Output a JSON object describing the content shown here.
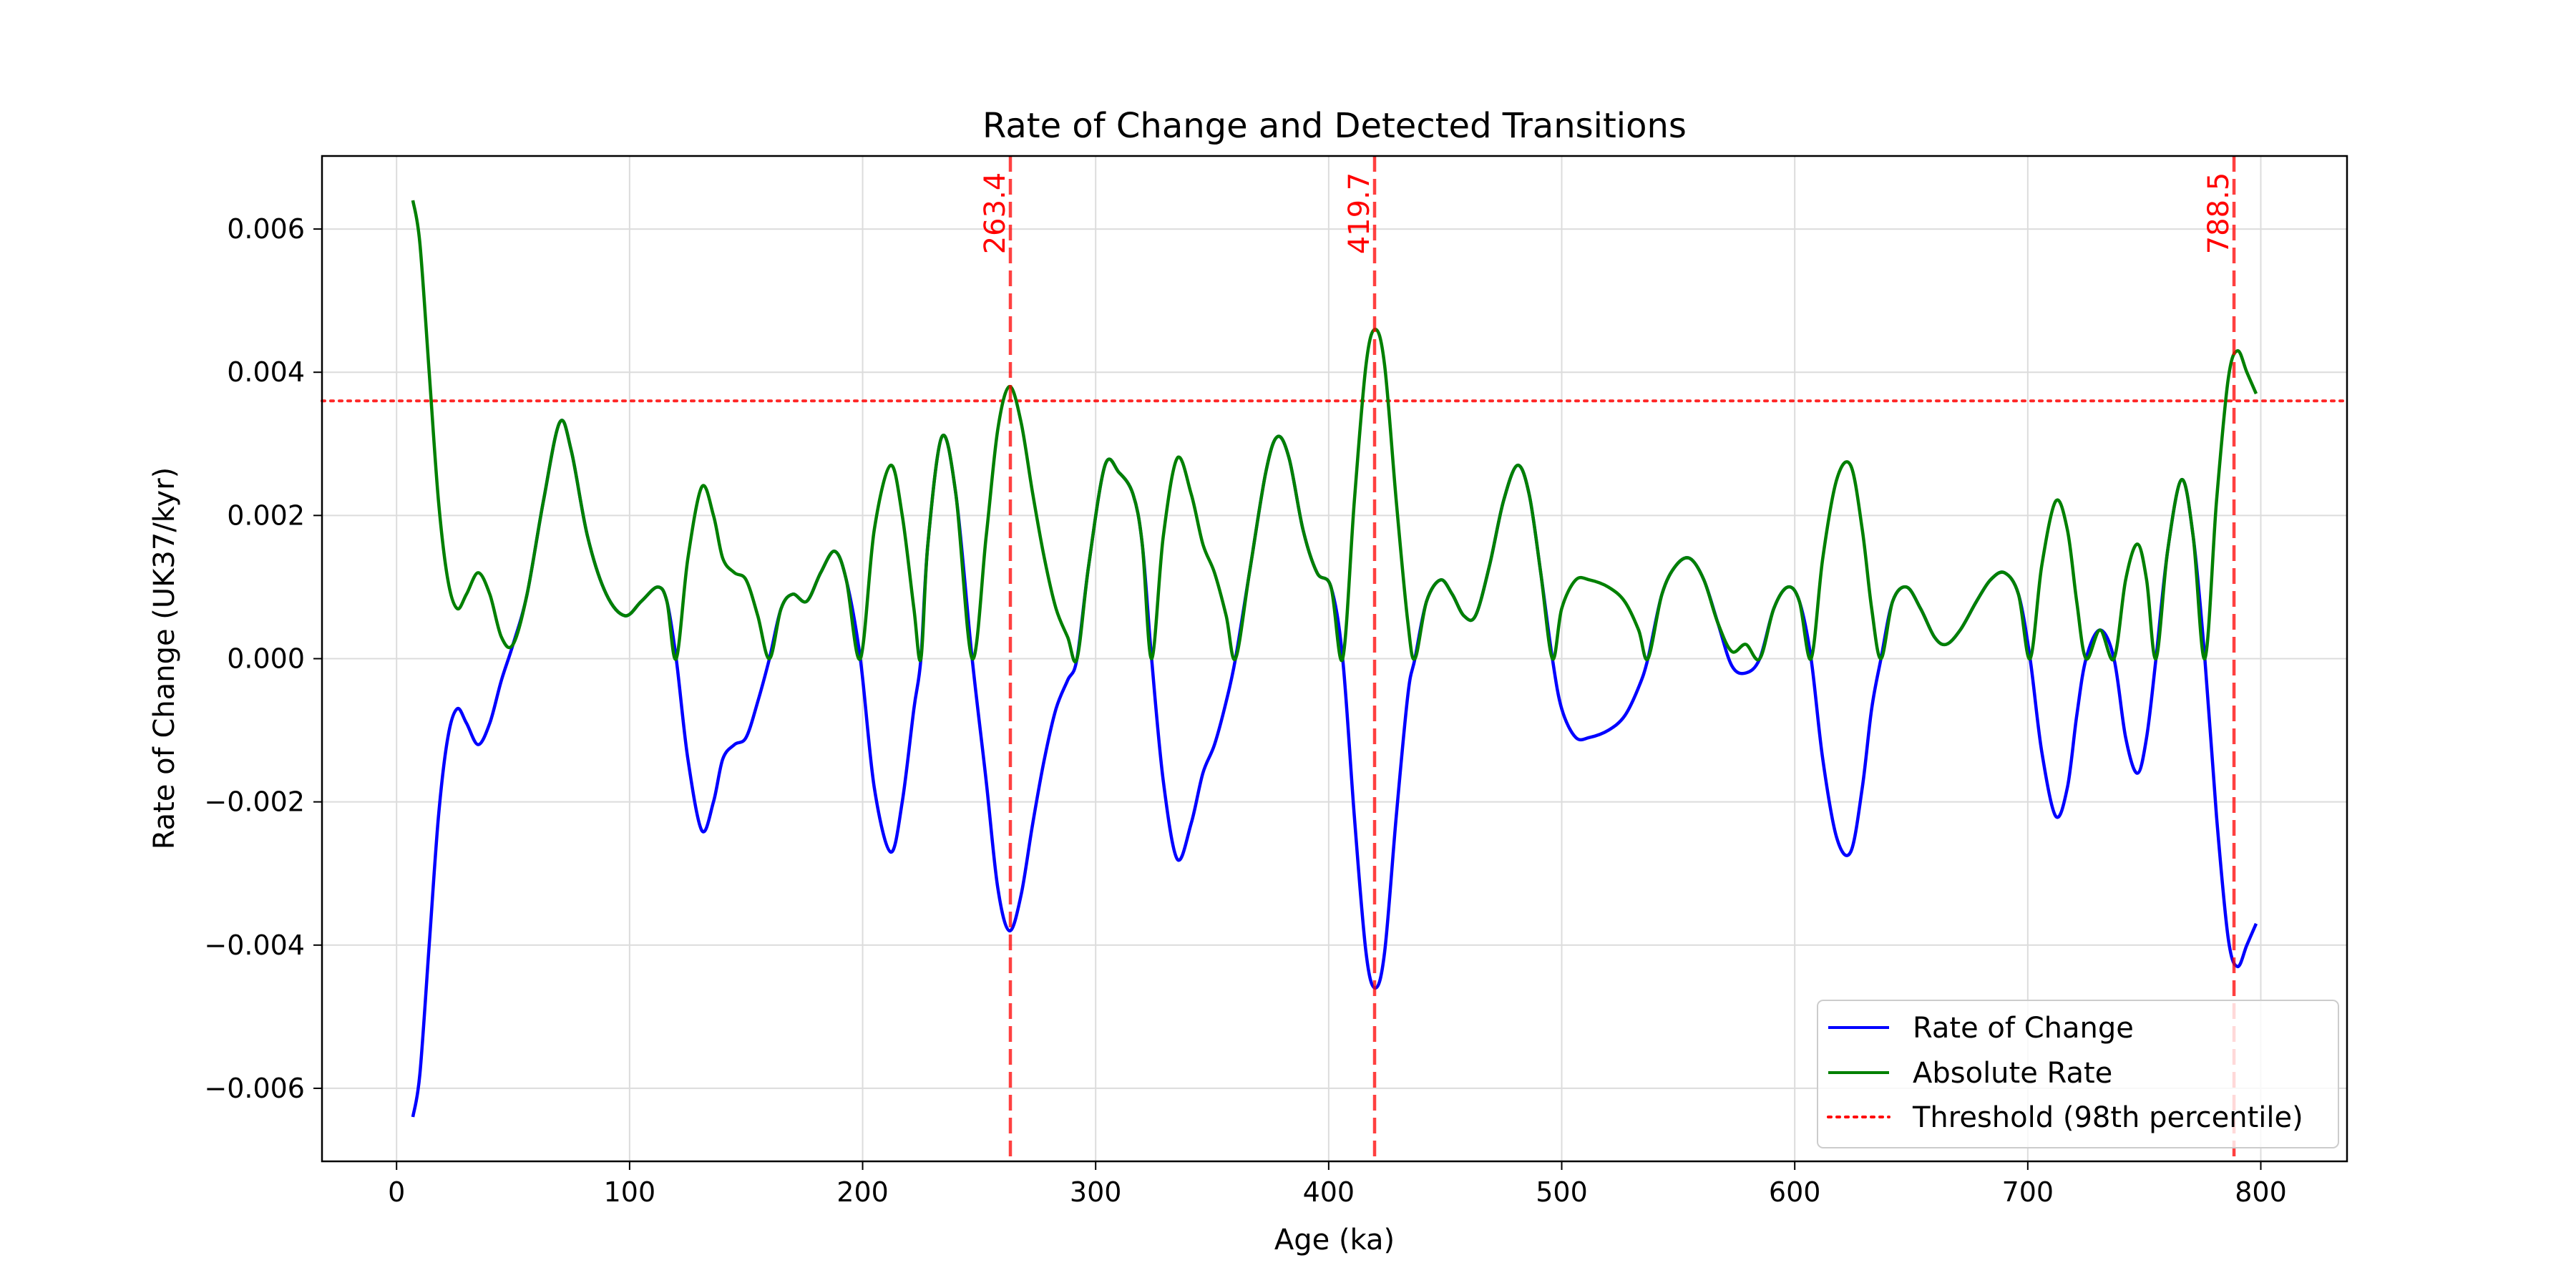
{
  "chart_data": {
    "type": "line",
    "title": "Rate of Change and Detected Transitions",
    "xlabel": "Age (ka)",
    "ylabel": "Rate of Change (UK37/kyr)",
    "xlim": [
      -32,
      837
    ],
    "ylim": [
      -0.00702,
      0.00702
    ],
    "x_ticks": [
      0,
      100,
      200,
      300,
      400,
      500,
      600,
      700,
      800
    ],
    "x_tick_labels": [
      "0",
      "100",
      "200",
      "300",
      "400",
      "500",
      "600",
      "700",
      "800"
    ],
    "y_ticks": [
      -0.006,
      -0.004,
      -0.002,
      0,
      0.002,
      0.004,
      0.006
    ],
    "y_tick_labels": [
      "−0.006",
      "−0.004",
      "−0.002",
      "0.000",
      "0.002",
      "0.004",
      "0.006"
    ],
    "grid": true,
    "legend_position": "lower-right",
    "threshold": {
      "name": "Threshold (98th percentile)",
      "value": 0.0036,
      "color": "#ff0000",
      "style": "dotted"
    },
    "transitions": [
      {
        "x": 263.4,
        "label": "263.4"
      },
      {
        "x": 419.7,
        "label": "419.7"
      },
      {
        "x": 788.5,
        "label": "788.5"
      }
    ],
    "transition_color": "#ff0000",
    "series": [
      {
        "name": "Rate of Change",
        "color": "#0000ff",
        "points": [
          [
            7,
            -0.0064
          ],
          [
            10,
            -0.0058
          ],
          [
            14,
            -0.004
          ],
          [
            18,
            -0.0022
          ],
          [
            22,
            -0.0011
          ],
          [
            26,
            -0.0007
          ],
          [
            30,
            -0.0009
          ],
          [
            35,
            -0.0012
          ],
          [
            40,
            -0.0009
          ],
          [
            45,
            -0.0003
          ],
          [
            50,
            0.0002
          ],
          [
            56,
            0.0009
          ],
          [
            63,
            0.0022
          ],
          [
            70,
            0.0033
          ],
          [
            75,
            0.0029
          ],
          [
            82,
            0.0017
          ],
          [
            90,
            0.0009
          ],
          [
            98,
            0.0006
          ],
          [
            105,
            0.0008
          ],
          [
            112,
            0.001
          ],
          [
            116,
            0.0008
          ],
          [
            120,
            0.0
          ],
          [
            125,
            -0.0014
          ],
          [
            131,
            -0.0024
          ],
          [
            136,
            -0.002
          ],
          [
            140,
            -0.0014
          ],
          [
            145,
            -0.0012
          ],
          [
            150,
            -0.0011
          ],
          [
            155,
            -0.0006
          ],
          [
            160,
            0.0
          ],
          [
            165,
            0.0007
          ],
          [
            170,
            0.0009
          ],
          [
            176,
            0.0008
          ],
          [
            182,
            0.0012
          ],
          [
            188,
            0.0015
          ],
          [
            193,
            0.0011
          ],
          [
            199,
            0.0
          ],
          [
            205,
            -0.0018
          ],
          [
            212,
            -0.0027
          ],
          [
            217,
            -0.002
          ],
          [
            222,
            -0.0007
          ],
          [
            225,
            0.0
          ],
          [
            228,
            0.0016
          ],
          [
            234,
            0.0031
          ],
          [
            240,
            0.0023
          ],
          [
            247,
            0.0
          ],
          [
            253,
            -0.0017
          ],
          [
            258,
            -0.0032
          ],
          [
            263,
            -0.0038
          ],
          [
            268,
            -0.0033
          ],
          [
            273,
            -0.0023
          ],
          [
            278,
            -0.0014
          ],
          [
            283,
            -0.0007
          ],
          [
            288,
            -0.0003
          ],
          [
            292,
            0.0
          ],
          [
            297,
            0.0013
          ],
          [
            304,
            0.0027
          ],
          [
            310,
            0.0026
          ],
          [
            316,
            0.0023
          ],
          [
            320,
            0.0016
          ],
          [
            324,
            0.0
          ],
          [
            329,
            -0.0017
          ],
          [
            335,
            -0.0028
          ],
          [
            341,
            -0.0023
          ],
          [
            346,
            -0.0016
          ],
          [
            351,
            -0.0012
          ],
          [
            356,
            -0.0006
          ],
          [
            360,
            0.0
          ],
          [
            366,
            0.0012
          ],
          [
            373,
            0.0026
          ],
          [
            378,
            0.0031
          ],
          [
            383,
            0.0028
          ],
          [
            389,
            0.0018
          ],
          [
            395,
            0.0012
          ],
          [
            401,
            0.001
          ],
          [
            406,
            0.0
          ],
          [
            411,
            -0.0022
          ],
          [
            416,
            -0.0041
          ],
          [
            420,
            -0.0046
          ],
          [
            424,
            -0.0041
          ],
          [
            429,
            -0.0022
          ],
          [
            434,
            -0.0005
          ],
          [
            437,
            0.0
          ],
          [
            442,
            0.0008
          ],
          [
            448,
            0.0011
          ],
          [
            453,
            0.0009
          ],
          [
            458,
            0.0006
          ],
          [
            463,
            0.0006
          ],
          [
            469,
            0.0013
          ],
          [
            475,
            0.0022
          ],
          [
            481,
            0.0027
          ],
          [
            486,
            0.0023
          ],
          [
            491,
            0.0012
          ],
          [
            496,
            0.0
          ],
          [
            500,
            -0.0007
          ],
          [
            506,
            -0.0011
          ],
          [
            512,
            -0.0011
          ],
          [
            520,
            -0.001
          ],
          [
            527,
            -0.0008
          ],
          [
            533,
            -0.0004
          ],
          [
            537,
            0.0
          ],
          [
            543,
            0.0009
          ],
          [
            549,
            0.0013
          ],
          [
            555,
            0.0014
          ],
          [
            561,
            0.0011
          ],
          [
            567,
            0.0005
          ],
          [
            573,
            -0.0001
          ],
          [
            579,
            -0.0002
          ],
          [
            585,
            0.0
          ],
          [
            591,
            0.0007
          ],
          [
            597,
            0.001
          ],
          [
            602,
            0.0008
          ],
          [
            607,
            0.0
          ],
          [
            612,
            -0.0014
          ],
          [
            618,
            -0.0025
          ],
          [
            624,
            -0.0027
          ],
          [
            629,
            -0.0018
          ],
          [
            633,
            -0.0007
          ],
          [
            637,
            0.0
          ],
          [
            642,
            0.0008
          ],
          [
            648,
            0.001
          ],
          [
            654,
            0.0007
          ],
          [
            660,
            0.0003
          ],
          [
            665,
            0.0002
          ],
          [
            671,
            0.0004
          ],
          [
            678,
            0.0008
          ],
          [
            684,
            0.0011
          ],
          [
            690,
            0.0012
          ],
          [
            696,
            0.0009
          ],
          [
            701,
            0.0
          ],
          [
            706,
            -0.0013
          ],
          [
            712,
            -0.0022
          ],
          [
            717,
            -0.0018
          ],
          [
            721,
            -0.0008
          ],
          [
            725,
            0.0
          ],
          [
            731,
            0.0004
          ],
          [
            737,
            0.0
          ],
          [
            742,
            -0.0011
          ],
          [
            747,
            -0.0016
          ],
          [
            751,
            -0.0011
          ],
          [
            755,
            0.0
          ],
          [
            760,
            0.0015
          ],
          [
            766,
            0.0025
          ],
          [
            771,
            0.0017
          ],
          [
            776,
            0.0
          ],
          [
            781,
            -0.0022
          ],
          [
            786,
            -0.0039
          ],
          [
            790,
            -0.0043
          ],
          [
            794,
            -0.004
          ],
          [
            798,
            -0.0037
          ]
        ]
      },
      {
        "name": "Absolute Rate",
        "color": "#008000",
        "derived": "absolute value of Rate of Change"
      }
    ]
  }
}
